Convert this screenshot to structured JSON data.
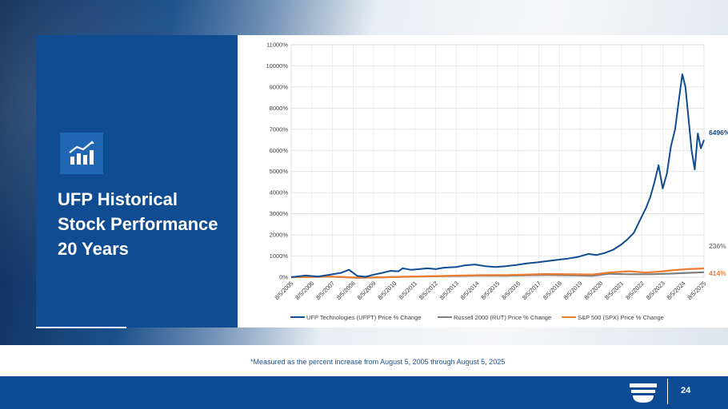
{
  "slide": {
    "title_line1": "UFP Historical",
    "title_line2": "Stock Performance",
    "title_line3": "20 Years",
    "footnote": "*Measured as the percent increase from August 5, 2005 through August 5, 2025",
    "page_number": "24"
  },
  "chart_data": {
    "type": "line",
    "title": "",
    "xlabel": "",
    "ylabel": "",
    "ylim": [
      0,
      11000
    ],
    "y_ticks": [
      "0%",
      "1000%",
      "2000%",
      "3000%",
      "4000%",
      "5000%",
      "6000%",
      "7000%",
      "8000%",
      "9000%",
      "10000%",
      "11000%"
    ],
    "x_ticks": [
      "8/5/2005",
      "8/5/2006",
      "8/5/2007",
      "8/5/2008",
      "8/5/2009",
      "8/5/2010",
      "8/5/2011",
      "8/5/2012",
      "8/5/2013",
      "8/5/2014",
      "8/5/2015",
      "8/5/2016",
      "8/5/2017",
      "8/5/2018",
      "8/5/2019",
      "8/5/2020",
      "8/5/2021",
      "8/5/2022",
      "8/5/2023",
      "8/5/2024",
      "8/5/2025"
    ],
    "x_range": [
      2005.6,
      2025.6
    ],
    "grid": true,
    "legend_position": "bottom",
    "series": [
      {
        "name": "UFP Technologies (UFPT) Price % Change",
        "color": "#0f4c91",
        "end_label": "6496%",
        "points": [
          [
            2005.6,
            0
          ],
          [
            2006.3,
            80
          ],
          [
            2006.9,
            30
          ],
          [
            2007.5,
            120
          ],
          [
            2008.0,
            200
          ],
          [
            2008.4,
            350
          ],
          [
            2008.8,
            60
          ],
          [
            2009.2,
            20
          ],
          [
            2009.6,
            120
          ],
          [
            2010.0,
            200
          ],
          [
            2010.4,
            300
          ],
          [
            2010.8,
            280
          ],
          [
            2011.0,
            420
          ],
          [
            2011.4,
            350
          ],
          [
            2011.8,
            380
          ],
          [
            2012.2,
            420
          ],
          [
            2012.6,
            380
          ],
          [
            2013.0,
            450
          ],
          [
            2013.6,
            480
          ],
          [
            2014.0,
            560
          ],
          [
            2014.5,
            600
          ],
          [
            2015.0,
            520
          ],
          [
            2015.5,
            480
          ],
          [
            2016.0,
            520
          ],
          [
            2016.5,
            580
          ],
          [
            2017.0,
            650
          ],
          [
            2017.5,
            700
          ],
          [
            2018.0,
            760
          ],
          [
            2018.5,
            820
          ],
          [
            2019.0,
            880
          ],
          [
            2019.5,
            960
          ],
          [
            2020.0,
            1100
          ],
          [
            2020.4,
            1050
          ],
          [
            2020.8,
            1150
          ],
          [
            2021.2,
            1300
          ],
          [
            2021.6,
            1550
          ],
          [
            2021.9,
            1800
          ],
          [
            2022.2,
            2100
          ],
          [
            2022.5,
            2700
          ],
          [
            2022.8,
            3300
          ],
          [
            2023.0,
            3800
          ],
          [
            2023.2,
            4500
          ],
          [
            2023.4,
            5300
          ],
          [
            2023.6,
            4200
          ],
          [
            2023.8,
            4900
          ],
          [
            2024.0,
            6200
          ],
          [
            2024.2,
            7000
          ],
          [
            2024.4,
            8500
          ],
          [
            2024.55,
            9600
          ],
          [
            2024.7,
            9000
          ],
          [
            2024.85,
            7500
          ],
          [
            2025.0,
            6000
          ],
          [
            2025.15,
            5100
          ],
          [
            2025.3,
            6800
          ],
          [
            2025.45,
            6100
          ],
          [
            2025.6,
            6496
          ]
        ]
      },
      {
        "name": "Russell 2000 (RUT) Price % Change",
        "color": "#7f7f7f",
        "end_label": "236%",
        "points": [
          [
            2005.6,
            0
          ],
          [
            2007.5,
            25
          ],
          [
            2008.8,
            -30
          ],
          [
            2009.5,
            -20
          ],
          [
            2011.0,
            20
          ],
          [
            2013.0,
            50
          ],
          [
            2015.0,
            80
          ],
          [
            2016.0,
            70
          ],
          [
            2018.0,
            110
          ],
          [
            2020.2,
            70
          ],
          [
            2021.0,
            160
          ],
          [
            2022.0,
            140
          ],
          [
            2023.0,
            140
          ],
          [
            2024.0,
            170
          ],
          [
            2025.0,
            210
          ],
          [
            2025.6,
            236
          ]
        ]
      },
      {
        "name": "S&P 500 (SPX) Price % Change",
        "color": "#ed7d31",
        "end_label": "414%",
        "points": [
          [
            2005.6,
            0
          ],
          [
            2007.5,
            30
          ],
          [
            2008.8,
            -20
          ],
          [
            2009.5,
            -15
          ],
          [
            2011.0,
            20
          ],
          [
            2013.0,
            60
          ],
          [
            2015.0,
            100
          ],
          [
            2016.0,
            100
          ],
          [
            2018.0,
            150
          ],
          [
            2020.2,
            130
          ],
          [
            2021.0,
            220
          ],
          [
            2022.0,
            280
          ],
          [
            2022.8,
            220
          ],
          [
            2023.5,
            270
          ],
          [
            2024.0,
            320
          ],
          [
            2024.8,
            380
          ],
          [
            2025.6,
            414
          ]
        ]
      }
    ]
  }
}
